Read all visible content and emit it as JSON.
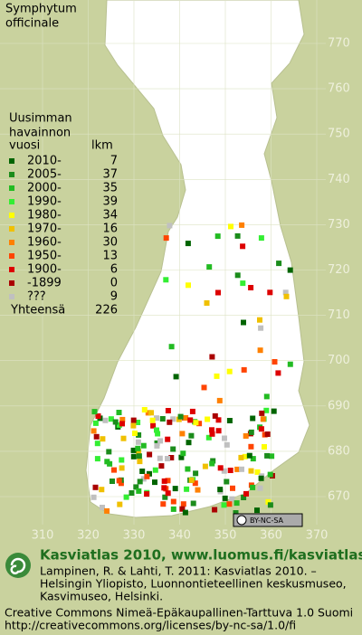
{
  "title": [
    "Symphytum",
    "officinale"
  ],
  "legend": {
    "header": [
      "Uusimman",
      "havainnon",
      "vuosi"
    ],
    "count_header": "lkm",
    "rows": [
      {
        "label": "2010-",
        "count": 7,
        "color": "#006400"
      },
      {
        "label": "2005-",
        "count": 37,
        "color": "#1b8c1b"
      },
      {
        "label": "2000-",
        "count": 35,
        "color": "#22bb22"
      },
      {
        "label": "1990-",
        "count": 39,
        "color": "#33ee33"
      },
      {
        "label": "1980-",
        "count": 34,
        "color": "#ffff00"
      },
      {
        "label": "1970-",
        "count": 16,
        "color": "#f0c000"
      },
      {
        "label": "1960-",
        "count": 30,
        "color": "#ff8000"
      },
      {
        "label": "1950-",
        "count": 13,
        "color": "#ff4400"
      },
      {
        "label": "1900-",
        "count": 6,
        "color": "#dd0000"
      },
      {
        "label": "-1899",
        "count": 0,
        "color": "#aa0000"
      },
      {
        "label": "???",
        "count": 9,
        "color": "#c0c0c0"
      }
    ],
    "total_label": "Yhteensä",
    "total": 226
  },
  "grid": {
    "y_ticks": [
      770,
      760,
      750,
      740,
      730,
      720,
      710,
      700,
      690,
      680,
      670
    ],
    "x_ticks": [
      310,
      320,
      330,
      340,
      350,
      360,
      370
    ]
  },
  "license_badge": "BY-NC-SA",
  "footer": {
    "heading": "Kasviatlas 2010, www.luomus.fi/kasviatlas",
    "citation": [
      "Lampinen, R. & Lahti, T. 2011: Kasviatlas 2010. –",
      "Helsingin Yliopisto, Luonnontieteellinen keskusmuseo,",
      "Kasvimuseo, Helsinki."
    ],
    "license": [
      "Creative Commons Nimeä-Epäkaupallinen-Tarttuva 1.0 Suomi",
      "http://creativecommons.org/licenses/by-nc-sa/1.0/fi"
    ]
  }
}
